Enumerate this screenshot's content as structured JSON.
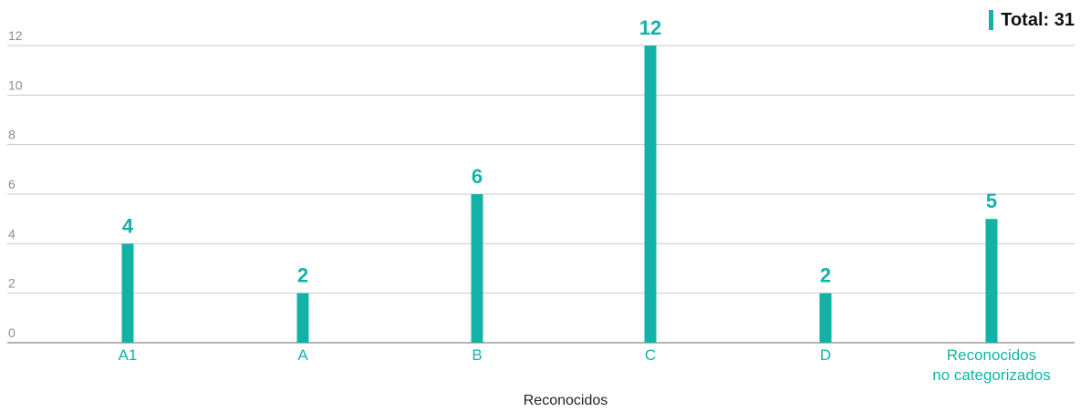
{
  "colors": {
    "accent": "#12b3a6",
    "grid": "#c9c9c9",
    "axis": "#9a9a9a",
    "tick_text": "#8c8c8c",
    "xlabel_text": "#222222"
  },
  "total": {
    "label": "Total: 31"
  },
  "chart_data": {
    "type": "bar",
    "title": "",
    "xlabel": "Reconocidos",
    "ylabel": "",
    "ylim": [
      0,
      12
    ],
    "yticks": [
      0,
      2,
      4,
      6,
      8,
      10,
      12
    ],
    "grid": true,
    "categories": [
      [
        "A1"
      ],
      [
        "A"
      ],
      [
        "B"
      ],
      [
        "C"
      ],
      [
        "D"
      ],
      [
        "Reconocidos",
        "no categorizados"
      ]
    ],
    "values": [
      4,
      2,
      6,
      12,
      2,
      5
    ],
    "data_labels": [
      "4",
      "2",
      "6",
      "12",
      "2",
      "5"
    ]
  }
}
